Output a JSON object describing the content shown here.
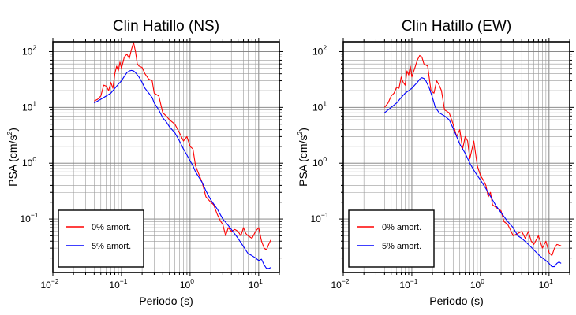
{
  "chart_data": [
    {
      "type": "line",
      "title": "Clin Hatillo (NS)",
      "xlabel": "Periodo (s)",
      "ylabel_main": "PSA (cm/s",
      "ylabel_exp": "2",
      "ylabel_close": ")",
      "xscale": "log",
      "yscale": "log",
      "xlim": [
        0.01,
        20
      ],
      "ylim": [
        0.011,
        150
      ],
      "grid": true,
      "legend": "bottom-left",
      "x_ticks": [
        {
          "base": "10",
          "exp": "−2"
        },
        {
          "base": "10",
          "exp": "−1"
        },
        {
          "base": "10",
          "exp": "0"
        },
        {
          "base": "10",
          "exp": "1"
        }
      ],
      "y_ticks": [
        {
          "base": "10",
          "exp": "−1"
        },
        {
          "base": "10",
          "exp": "0"
        },
        {
          "base": "10",
          "exp": "1"
        },
        {
          "base": "10",
          "exp": "2"
        }
      ],
      "series": [
        {
          "name": "0% amort.",
          "color": "#ff0000",
          "points": [
            [
              0.04,
              13
            ],
            [
              0.045,
              14
            ],
            [
              0.05,
              16
            ],
            [
              0.055,
              25
            ],
            [
              0.06,
              24
            ],
            [
              0.065,
              20
            ],
            [
              0.07,
              28
            ],
            [
              0.075,
              22
            ],
            [
              0.08,
              40
            ],
            [
              0.085,
              55
            ],
            [
              0.09,
              45
            ],
            [
              0.095,
              65
            ],
            [
              0.1,
              50
            ],
            [
              0.11,
              80
            ],
            [
              0.12,
              90
            ],
            [
              0.13,
              75
            ],
            [
              0.14,
              110
            ],
            [
              0.15,
              145
            ],
            [
              0.16,
              100
            ],
            [
              0.17,
              60
            ],
            [
              0.18,
              55
            ],
            [
              0.2,
              52
            ],
            [
              0.22,
              40
            ],
            [
              0.25,
              32
            ],
            [
              0.28,
              30
            ],
            [
              0.3,
              18
            ],
            [
              0.35,
              16
            ],
            [
              0.4,
              8
            ],
            [
              0.45,
              7
            ],
            [
              0.5,
              6
            ],
            [
              0.6,
              5
            ],
            [
              0.7,
              3.5
            ],
            [
              0.8,
              2.5
            ],
            [
              0.9,
              3
            ],
            [
              1,
              2
            ],
            [
              1.1,
              1.8
            ],
            [
              1.2,
              0.9
            ],
            [
              1.3,
              0.7
            ],
            [
              1.5,
              0.45
            ],
            [
              1.7,
              0.25
            ],
            [
              2,
              0.2
            ],
            [
              2.2,
              0.18
            ],
            [
              2.5,
              0.12
            ],
            [
              2.8,
              0.09
            ],
            [
              3,
              0.08
            ],
            [
              3.3,
              0.05
            ],
            [
              3.6,
              0.07
            ],
            [
              4,
              0.06
            ],
            [
              4.5,
              0.065
            ],
            [
              5,
              0.06
            ],
            [
              5.5,
              0.05
            ],
            [
              6,
              0.07
            ],
            [
              6.5,
              0.055
            ],
            [
              7,
              0.05
            ],
            [
              8,
              0.045
            ],
            [
              9,
              0.06
            ],
            [
              10,
              0.07
            ],
            [
              11,
              0.04
            ],
            [
              12,
              0.03
            ],
            [
              13,
              0.028
            ],
            [
              14,
              0.035
            ],
            [
              15,
              0.042
            ]
          ]
        },
        {
          "name": "5% amort.",
          "color": "#0000ff",
          "points": [
            [
              0.04,
              12
            ],
            [
              0.045,
              13
            ],
            [
              0.05,
              14
            ],
            [
              0.06,
              16
            ],
            [
              0.07,
              18
            ],
            [
              0.08,
              22
            ],
            [
              0.09,
              26
            ],
            [
              0.1,
              30
            ],
            [
              0.11,
              36
            ],
            [
              0.12,
              42
            ],
            [
              0.13,
              45
            ],
            [
              0.14,
              46
            ],
            [
              0.15,
              45
            ],
            [
              0.16,
              42
            ],
            [
              0.18,
              35
            ],
            [
              0.2,
              28
            ],
            [
              0.22,
              22
            ],
            [
              0.25,
              18
            ],
            [
              0.28,
              15
            ],
            [
              0.3,
              12
            ],
            [
              0.35,
              9
            ],
            [
              0.4,
              6.5
            ],
            [
              0.45,
              5.5
            ],
            [
              0.5,
              4.5
            ],
            [
              0.6,
              3.5
            ],
            [
              0.7,
              2.5
            ],
            [
              0.8,
              1.8
            ],
            [
              0.9,
              1.4
            ],
            [
              1,
              1.1
            ],
            [
              1.1,
              0.9
            ],
            [
              1.2,
              0.7
            ],
            [
              1.5,
              0.45
            ],
            [
              1.7,
              0.32
            ],
            [
              2,
              0.22
            ],
            [
              2.5,
              0.15
            ],
            [
              3,
              0.1
            ],
            [
              3.5,
              0.08
            ],
            [
              4,
              0.065
            ],
            [
              5,
              0.045
            ],
            [
              6,
              0.032
            ],
            [
              7,
              0.024
            ],
            [
              8,
              0.022
            ],
            [
              9,
              0.02
            ],
            [
              10,
              0.018
            ],
            [
              11,
              0.019
            ],
            [
              12,
              0.015
            ],
            [
              13,
              0.013
            ],
            [
              14,
              0.013
            ],
            [
              15,
              0.0135
            ]
          ]
        }
      ]
    },
    {
      "type": "line",
      "title": "Clin Hatillo (EW)",
      "xlabel": "Periodo (s)",
      "ylabel_main": "PSA (cm/s",
      "ylabel_exp": "2",
      "ylabel_close": ")",
      "xscale": "log",
      "yscale": "log",
      "xlim": [
        0.01,
        20
      ],
      "ylim": [
        0.011,
        150
      ],
      "grid": true,
      "legend": "bottom-left",
      "x_ticks": [
        {
          "base": "10",
          "exp": "−2"
        },
        {
          "base": "10",
          "exp": "−1"
        },
        {
          "base": "10",
          "exp": "0"
        },
        {
          "base": "10",
          "exp": "1"
        }
      ],
      "y_ticks": [
        {
          "base": "10",
          "exp": "−1"
        },
        {
          "base": "10",
          "exp": "0"
        },
        {
          "base": "10",
          "exp": "1"
        },
        {
          "base": "10",
          "exp": "2"
        }
      ],
      "series": [
        {
          "name": "0% amort.",
          "color": "#ff0000",
          "points": [
            [
              0.04,
              10
            ],
            [
              0.045,
              12
            ],
            [
              0.05,
              16
            ],
            [
              0.055,
              18
            ],
            [
              0.06,
              23
            ],
            [
              0.065,
              22
            ],
            [
              0.07,
              35
            ],
            [
              0.075,
              28
            ],
            [
              0.08,
              25
            ],
            [
              0.085,
              45
            ],
            [
              0.09,
              38
            ],
            [
              0.095,
              55
            ],
            [
              0.1,
              35
            ],
            [
              0.11,
              50
            ],
            [
              0.12,
              70
            ],
            [
              0.13,
              85
            ],
            [
              0.14,
              80
            ],
            [
              0.15,
              60
            ],
            [
              0.17,
              55
            ],
            [
              0.19,
              20
            ],
            [
              0.21,
              18
            ],
            [
              0.23,
              30
            ],
            [
              0.25,
              25
            ],
            [
              0.27,
              20
            ],
            [
              0.3,
              9
            ],
            [
              0.35,
              8
            ],
            [
              0.4,
              5
            ],
            [
              0.45,
              3
            ],
            [
              0.5,
              4
            ],
            [
              0.55,
              1.8
            ],
            [
              0.6,
              3
            ],
            [
              0.65,
              2.5
            ],
            [
              0.7,
              1.2
            ],
            [
              0.8,
              2.5
            ],
            [
              0.9,
              0.9
            ],
            [
              1,
              0.6
            ],
            [
              1.1,
              0.5
            ],
            [
              1.2,
              0.4
            ],
            [
              1.3,
              0.25
            ],
            [
              1.4,
              0.3
            ],
            [
              1.5,
              0.18
            ],
            [
              1.7,
              0.16
            ],
            [
              2,
              0.14
            ],
            [
              2.2,
              0.09
            ],
            [
              2.5,
              0.08
            ],
            [
              2.8,
              0.06
            ],
            [
              3,
              0.05
            ],
            [
              3.5,
              0.055
            ],
            [
              4,
              0.06
            ],
            [
              4.5,
              0.045
            ],
            [
              5,
              0.06
            ],
            [
              5.5,
              0.04
            ],
            [
              6,
              0.035
            ],
            [
              7,
              0.05
            ],
            [
              8,
              0.03
            ],
            [
              9,
              0.04
            ],
            [
              10,
              0.025
            ],
            [
              11,
              0.022
            ],
            [
              12,
              0.03
            ],
            [
              13,
              0.035
            ],
            [
              14,
              0.034
            ],
            [
              15,
              0.033
            ]
          ]
        },
        {
          "name": "5% amort.",
          "color": "#0000ff",
          "points": [
            [
              0.04,
              8
            ],
            [
              0.045,
              9
            ],
            [
              0.05,
              10
            ],
            [
              0.06,
              12
            ],
            [
              0.07,
              15
            ],
            [
              0.08,
              18
            ],
            [
              0.09,
              20
            ],
            [
              0.1,
              22
            ],
            [
              0.11,
              25
            ],
            [
              0.12,
              28
            ],
            [
              0.13,
              32
            ],
            [
              0.14,
              34
            ],
            [
              0.15,
              33
            ],
            [
              0.16,
              30
            ],
            [
              0.18,
              22
            ],
            [
              0.2,
              15
            ],
            [
              0.22,
              10
            ],
            [
              0.25,
              8
            ],
            [
              0.3,
              7
            ],
            [
              0.35,
              6
            ],
            [
              0.4,
              4.2
            ],
            [
              0.45,
              3
            ],
            [
              0.5,
              2.2
            ],
            [
              0.6,
              1.5
            ],
            [
              0.7,
              1
            ],
            [
              0.8,
              0.75
            ],
            [
              0.9,
              0.6
            ],
            [
              1,
              0.5
            ],
            [
              1.2,
              0.35
            ],
            [
              1.5,
              0.22
            ],
            [
              1.7,
              0.17
            ],
            [
              2,
              0.13
            ],
            [
              2.5,
              0.09
            ],
            [
              3,
              0.07
            ],
            [
              3.5,
              0.05
            ],
            [
              4,
              0.045
            ],
            [
              5,
              0.035
            ],
            [
              6,
              0.028
            ],
            [
              7,
              0.023
            ],
            [
              8,
              0.02
            ],
            [
              9,
              0.018
            ],
            [
              10,
              0.016
            ],
            [
              11,
              0.014
            ],
            [
              12,
              0.014
            ],
            [
              13,
              0.016
            ],
            [
              14,
              0.017
            ],
            [
              15,
              0.016
            ]
          ]
        }
      ]
    }
  ]
}
